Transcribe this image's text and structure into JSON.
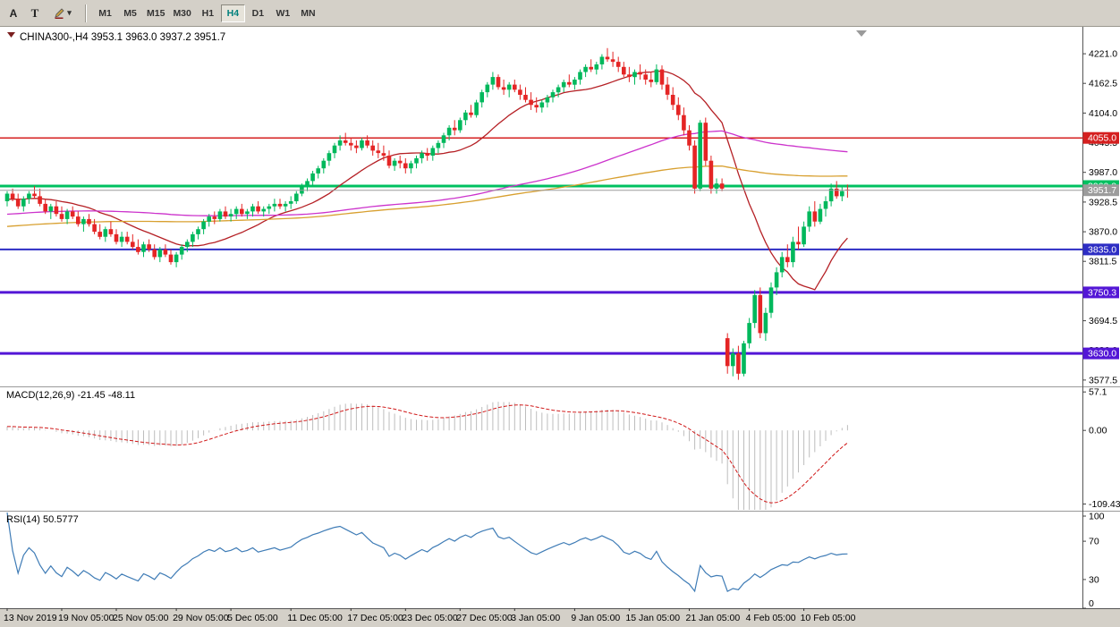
{
  "toolbar": {
    "font_tool_label": "A",
    "text_tool_label": "T",
    "caret_glyph": "▾",
    "timeframes": [
      "M1",
      "M5",
      "M15",
      "M30",
      "H1",
      "H4",
      "D1",
      "W1",
      "MN"
    ],
    "active_timeframe": "H4"
  },
  "chart": {
    "title": "CHINA300-,H4 3953.1 3963.0 3937.2 3951.7",
    "symbol": "CHINA300-",
    "period": "H4",
    "open": "3953.1",
    "high": "3963.0",
    "low": "3937.2",
    "close": "3951.7"
  },
  "indicators": {
    "macd": {
      "title": "MACD(12,26,9) -21.45 -48.11",
      "main_value": -21.45,
      "signal_value": -48.11
    },
    "rsi": {
      "title": "RSI(14) 50.5777",
      "value": 50.5777
    }
  },
  "chart_data": {
    "type": "candlestick",
    "symbol": "CHINA300-",
    "timeframe": "H4",
    "ylim": [
      3565,
      4274
    ],
    "colors": {
      "candle_up": "#00b85c",
      "candle_down": "#e42525",
      "background": "#ffffff"
    },
    "price_ticks": [
      "4221.0",
      "4162.5",
      "4104.0",
      "4045.5",
      "3987.0",
      "3928.5",
      "3870.0",
      "3811.5",
      "3753.0",
      "3694.5",
      "3636.0",
      "3577.5"
    ],
    "levels": [
      {
        "price": 4055.0,
        "label": "4055.0",
        "color": "#d51f1f",
        "width": 1.5
      },
      {
        "price": 3960.0,
        "label": "3960.0",
        "color": "#00c060",
        "width": 3
      },
      {
        "price": 3835.0,
        "label": "3835.0",
        "color": "#2d2dc4",
        "width": 2
      },
      {
        "price": 3750.3,
        "label": "3750.3",
        "color": "#5316d6",
        "width": 3
      },
      {
        "price": 3630.0,
        "label": "3630.0",
        "color": "#5316d6",
        "width": 3
      }
    ],
    "current_price": {
      "value": 3951.7,
      "label": "3951.7",
      "color": "#9c9c9c"
    },
    "time_labels": [
      {
        "label": "13 Nov 2019",
        "index": 0
      },
      {
        "label": "19 Nov 05:00",
        "index": 10
      },
      {
        "label": "25 Nov 05:00",
        "index": 20
      },
      {
        "label": "29 Nov 05:00",
        "index": 31
      },
      {
        "label": "5 Dec 05:00",
        "index": 41
      },
      {
        "label": "11 Dec 05:00",
        "index": 52
      },
      {
        "label": "17 Dec 05:00",
        "index": 63
      },
      {
        "label": "23 Dec 05:00",
        "index": 73
      },
      {
        "label": "27 Dec 05:00",
        "index": 83
      },
      {
        "label": "3 Jan 05:00",
        "index": 93
      },
      {
        "label": "9 Jan 05:00",
        "index": 104
      },
      {
        "label": "15 Jan 05:00",
        "index": 114
      },
      {
        "label": "21 Jan 05:00",
        "index": 125
      },
      {
        "label": "4 Feb 05:00",
        "index": 136
      },
      {
        "label": "10 Feb 05:00",
        "index": 146
      }
    ],
    "overlays": [
      {
        "name": "ma-fast-red",
        "period": 17,
        "color": "#b52025"
      },
      {
        "name": "ma-mid-magenta",
        "period": 90,
        "color": "#cc33cc"
      },
      {
        "name": "ma-slow-orange",
        "period": 150,
        "color": "#d8a030"
      }
    ],
    "macd": {
      "fast": 12,
      "slow": 26,
      "signal": 9,
      "range": [
        -118,
        64
      ],
      "axis_labels": [
        "57.1",
        "0.00",
        "-109.43"
      ],
      "axis_values": [
        57.1,
        0,
        -109.43
      ],
      "histogram_color": "#bdbdbd",
      "signal_color": "#d01818"
    },
    "rsi": {
      "period": 14,
      "axis_labels": [
        "100",
        "70",
        "30",
        "0"
      ],
      "axis_values": [
        100,
        70,
        30,
        0
      ],
      "color": "#3f7cb6"
    },
    "candles": [
      [
        3930,
        3950,
        3920,
        3945
      ],
      [
        3945,
        3955,
        3930,
        3935
      ],
      [
        3935,
        3945,
        3915,
        3920
      ],
      [
        3920,
        3940,
        3910,
        3935
      ],
      [
        3935,
        3950,
        3925,
        3945
      ],
      [
        3945,
        3960,
        3935,
        3940
      ],
      [
        3940,
        3955,
        3920,
        3925
      ],
      [
        3925,
        3935,
        3905,
        3910
      ],
      [
        3910,
        3925,
        3895,
        3920
      ],
      [
        3920,
        3930,
        3900,
        3905
      ],
      [
        3905,
        3920,
        3890,
        3895
      ],
      [
        3895,
        3915,
        3885,
        3910
      ],
      [
        3910,
        3920,
        3895,
        3900
      ],
      [
        3900,
        3910,
        3880,
        3885
      ],
      [
        3885,
        3900,
        3870,
        3895
      ],
      [
        3895,
        3905,
        3880,
        3885
      ],
      [
        3885,
        3895,
        3865,
        3870
      ],
      [
        3870,
        3885,
        3855,
        3860
      ],
      [
        3860,
        3880,
        3850,
        3875
      ],
      [
        3875,
        3890,
        3860,
        3865
      ],
      [
        3865,
        3875,
        3845,
        3850
      ],
      [
        3850,
        3870,
        3840,
        3860
      ],
      [
        3860,
        3870,
        3845,
        3850
      ],
      [
        3850,
        3865,
        3835,
        3840
      ],
      [
        3840,
        3855,
        3825,
        3830
      ],
      [
        3830,
        3850,
        3820,
        3845
      ],
      [
        3845,
        3855,
        3830,
        3835
      ],
      [
        3835,
        3845,
        3815,
        3820
      ],
      [
        3820,
        3840,
        3810,
        3835
      ],
      [
        3835,
        3845,
        3820,
        3825
      ],
      [
        3825,
        3835,
        3805,
        3810
      ],
      [
        3810,
        3830,
        3800,
        3825
      ],
      [
        3825,
        3845,
        3815,
        3840
      ],
      [
        3840,
        3855,
        3830,
        3850
      ],
      [
        3850,
        3870,
        3840,
        3865
      ],
      [
        3865,
        3880,
        3855,
        3875
      ],
      [
        3875,
        3895,
        3865,
        3890
      ],
      [
        3890,
        3905,
        3880,
        3900
      ],
      [
        3900,
        3910,
        3885,
        3895
      ],
      [
        3895,
        3915,
        3890,
        3910
      ],
      [
        3910,
        3920,
        3895,
        3900
      ],
      [
        3900,
        3915,
        3890,
        3905
      ],
      [
        3905,
        3920,
        3895,
        3915
      ],
      [
        3915,
        3925,
        3900,
        3905
      ],
      [
        3905,
        3915,
        3895,
        3910
      ],
      [
        3910,
        3925,
        3900,
        3920
      ],
      [
        3920,
        3930,
        3905,
        3910
      ],
      [
        3910,
        3920,
        3900,
        3915
      ],
      [
        3915,
        3925,
        3905,
        3920
      ],
      [
        3920,
        3935,
        3910,
        3925
      ],
      [
        3925,
        3935,
        3915,
        3920
      ],
      [
        3920,
        3930,
        3910,
        3925
      ],
      [
        3925,
        3940,
        3915,
        3930
      ],
      [
        3930,
        3950,
        3925,
        3945
      ],
      [
        3945,
        3965,
        3940,
        3960
      ],
      [
        3960,
        3975,
        3950,
        3970
      ],
      [
        3970,
        3990,
        3960,
        3985
      ],
      [
        3985,
        4000,
        3975,
        3995
      ],
      [
        3995,
        4015,
        3985,
        4010
      ],
      [
        4010,
        4030,
        4000,
        4025
      ],
      [
        4025,
        4045,
        4015,
        4040
      ],
      [
        4040,
        4060,
        4030,
        4050
      ],
      [
        4050,
        4065,
        4040,
        4045
      ],
      [
        4045,
        4055,
        4030,
        4040
      ],
      [
        4040,
        4050,
        4025,
        4035
      ],
      [
        4035,
        4055,
        4030,
        4050
      ],
      [
        4050,
        4060,
        4035,
        4040
      ],
      [
        4040,
        4050,
        4020,
        4030
      ],
      [
        4030,
        4045,
        4015,
        4025
      ],
      [
        4025,
        4040,
        4010,
        4020
      ],
      [
        4020,
        4030,
        3995,
        4000
      ],
      [
        4000,
        4015,
        3990,
        4010
      ],
      [
        4010,
        4020,
        3995,
        4005
      ],
      [
        4005,
        4015,
        3985,
        3995
      ],
      [
        3995,
        4010,
        3985,
        4005
      ],
      [
        4005,
        4020,
        3995,
        4015
      ],
      [
        4015,
        4030,
        4005,
        4025
      ],
      [
        4025,
        4035,
        4010,
        4020
      ],
      [
        4020,
        4040,
        4010,
        4035
      ],
      [
        4035,
        4050,
        4025,
        4045
      ],
      [
        4045,
        4065,
        4035,
        4060
      ],
      [
        4060,
        4080,
        4050,
        4075
      ],
      [
        4075,
        4090,
        4060,
        4070
      ],
      [
        4070,
        4095,
        4065,
        4090
      ],
      [
        4090,
        4110,
        4080,
        4105
      ],
      [
        4105,
        4120,
        4095,
        4100
      ],
      [
        4100,
        4130,
        4095,
        4125
      ],
      [
        4125,
        4150,
        4115,
        4145
      ],
      [
        4145,
        4165,
        4135,
        4160
      ],
      [
        4160,
        4185,
        4150,
        4175
      ],
      [
        4175,
        4180,
        4150,
        4155
      ],
      [
        4155,
        4170,
        4140,
        4150
      ],
      [
        4150,
        4165,
        4135,
        4160
      ],
      [
        4160,
        4170,
        4145,
        4150
      ],
      [
        4150,
        4160,
        4130,
        4140
      ],
      [
        4140,
        4155,
        4125,
        4130
      ],
      [
        4130,
        4145,
        4110,
        4120
      ],
      [
        4120,
        4135,
        4105,
        4115
      ],
      [
        4115,
        4130,
        4105,
        4125
      ],
      [
        4125,
        4140,
        4115,
        4135
      ],
      [
        4135,
        4150,
        4125,
        4145
      ],
      [
        4145,
        4160,
        4135,
        4155
      ],
      [
        4155,
        4170,
        4145,
        4165
      ],
      [
        4165,
        4180,
        4155,
        4160
      ],
      [
        4160,
        4175,
        4150,
        4170
      ],
      [
        4170,
        4190,
        4160,
        4185
      ],
      [
        4185,
        4200,
        4175,
        4195
      ],
      [
        4195,
        4210,
        4185,
        4190
      ],
      [
        4190,
        4205,
        4180,
        4200
      ],
      [
        4200,
        4220,
        4190,
        4215
      ],
      [
        4215,
        4232,
        4205,
        4210
      ],
      [
        4210,
        4225,
        4195,
        4205
      ],
      [
        4205,
        4215,
        4185,
        4195
      ],
      [
        4195,
        4205,
        4175,
        4180
      ],
      [
        4180,
        4195,
        4165,
        4175
      ],
      [
        4175,
        4190,
        4160,
        4185
      ],
      [
        4185,
        4200,
        4170,
        4180
      ],
      [
        4180,
        4190,
        4160,
        4170
      ],
      [
        4170,
        4185,
        4155,
        4165
      ],
      [
        4165,
        4200,
        4160,
        4190
      ],
      [
        4190,
        4198,
        4150,
        4160
      ],
      [
        4160,
        4175,
        4130,
        4140
      ],
      [
        4140,
        4155,
        4110,
        4120
      ],
      [
        4120,
        4135,
        4090,
        4100
      ],
      [
        4100,
        4115,
        4060,
        4070
      ],
      [
        4070,
        4080,
        4030,
        4040
      ],
      [
        4040,
        4050,
        3945,
        3955
      ],
      [
        3955,
        4090,
        3950,
        4085
      ],
      [
        4085,
        4095,
        4000,
        4010
      ],
      [
        4010,
        4020,
        3945,
        3955
      ],
      [
        3955,
        3975,
        3945,
        3965
      ],
      [
        3965,
        3975,
        3950,
        3955
      ],
      [
        3660,
        3670,
        3590,
        3605
      ],
      [
        3605,
        3640,
        3585,
        3630
      ],
      [
        3630,
        3645,
        3578,
        3590
      ],
      [
        3590,
        3655,
        3585,
        3650
      ],
      [
        3650,
        3700,
        3640,
        3690
      ],
      [
        3690,
        3755,
        3680,
        3745
      ],
      [
        3745,
        3760,
        3660,
        3670
      ],
      [
        3670,
        3720,
        3655,
        3710
      ],
      [
        3710,
        3770,
        3700,
        3760
      ],
      [
        3760,
        3800,
        3745,
        3790
      ],
      [
        3790,
        3830,
        3780,
        3820
      ],
      [
        3820,
        3845,
        3800,
        3810
      ],
      [
        3810,
        3860,
        3800,
        3850
      ],
      [
        3850,
        3880,
        3835,
        3845
      ],
      [
        3845,
        3890,
        3840,
        3880
      ],
      [
        3880,
        3920,
        3870,
        3910
      ],
      [
        3910,
        3930,
        3880,
        3890
      ],
      [
        3890,
        3925,
        3885,
        3915
      ],
      [
        3915,
        3940,
        3900,
        3930
      ],
      [
        3930,
        3965,
        3920,
        3955
      ],
      [
        3955,
        3970,
        3935,
        3940
      ],
      [
        3940,
        3958,
        3930,
        3950
      ],
      [
        3953.1,
        3963,
        3937.2,
        3951.7
      ]
    ]
  }
}
